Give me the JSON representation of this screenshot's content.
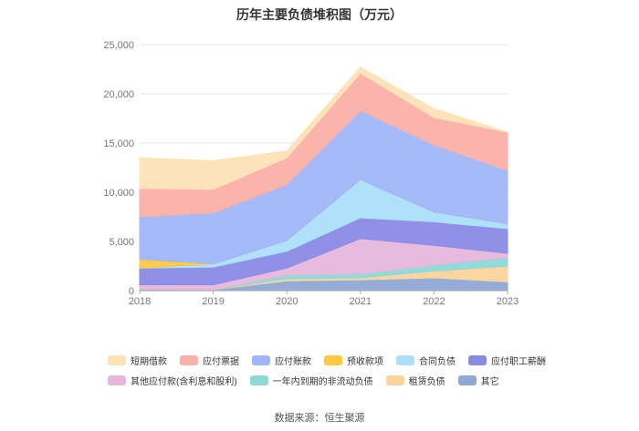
{
  "chart_data": {
    "type": "area",
    "stacked": true,
    "title": "历年主要负债堆积图（万元）",
    "xlabel": "",
    "ylabel": "",
    "categories": [
      "2018",
      "2019",
      "2020",
      "2021",
      "2022",
      "2023"
    ],
    "ylim": [
      0,
      25000
    ],
    "yticks": [
      0,
      5000,
      10000,
      15000,
      20000,
      25000
    ],
    "ytick_labels": [
      "0",
      "5,000",
      "10,000",
      "15,000",
      "20,000",
      "25,000"
    ],
    "grid": true,
    "legend_position": "bottom",
    "series": [
      {
        "name": "其它",
        "color": "#8ea9d4",
        "values": [
          150,
          100,
          1000,
          1100,
          1300,
          900
        ]
      },
      {
        "name": "租赁负债",
        "color": "#fbd49b",
        "values": [
          0,
          0,
          200,
          200,
          700,
          1600
        ]
      },
      {
        "name": "一年内到期的非流动负债",
        "color": "#8ed8d6",
        "values": [
          0,
          0,
          400,
          400,
          600,
          900
        ]
      },
      {
        "name": "其他应付款(含利息和股利)",
        "color": "#e7b6dc",
        "values": [
          450,
          500,
          700,
          3600,
          2000,
          400
        ]
      },
      {
        "name": "应付职工薪酬",
        "color": "#8a8ae6",
        "values": [
          1700,
          1800,
          1700,
          2100,
          2400,
          2500
        ]
      },
      {
        "name": "合同负债",
        "color": "#abdffb",
        "values": [
          0,
          300,
          1100,
          3900,
          1000,
          500
        ]
      },
      {
        "name": "预收款项",
        "color": "#fcc940",
        "values": [
          900,
          0,
          0,
          0,
          0,
          0
        ]
      },
      {
        "name": "应付账款",
        "color": "#9fb6f9",
        "values": [
          4300,
          5200,
          5700,
          7000,
          6800,
          5400
        ]
      },
      {
        "name": "应付票据",
        "color": "#fbb0a8",
        "values": [
          2900,
          2400,
          2700,
          3800,
          2800,
          3900
        ]
      },
      {
        "name": "短期借款",
        "color": "#fde2b5",
        "values": [
          3100,
          2900,
          700,
          600,
          900,
          0
        ]
      }
    ]
  },
  "legend": {
    "rows": [
      [
        "短期借款",
        "应付票据",
        "应付账款",
        "预收款项",
        "合同负债",
        "应付职工薪酬"
      ],
      [
        "其他应付款(含利息和股利)",
        "一年内到期的非流动负债",
        "租赁负债",
        "其它"
      ]
    ]
  },
  "footer": {
    "source": "数据来源：恒生聚源"
  }
}
